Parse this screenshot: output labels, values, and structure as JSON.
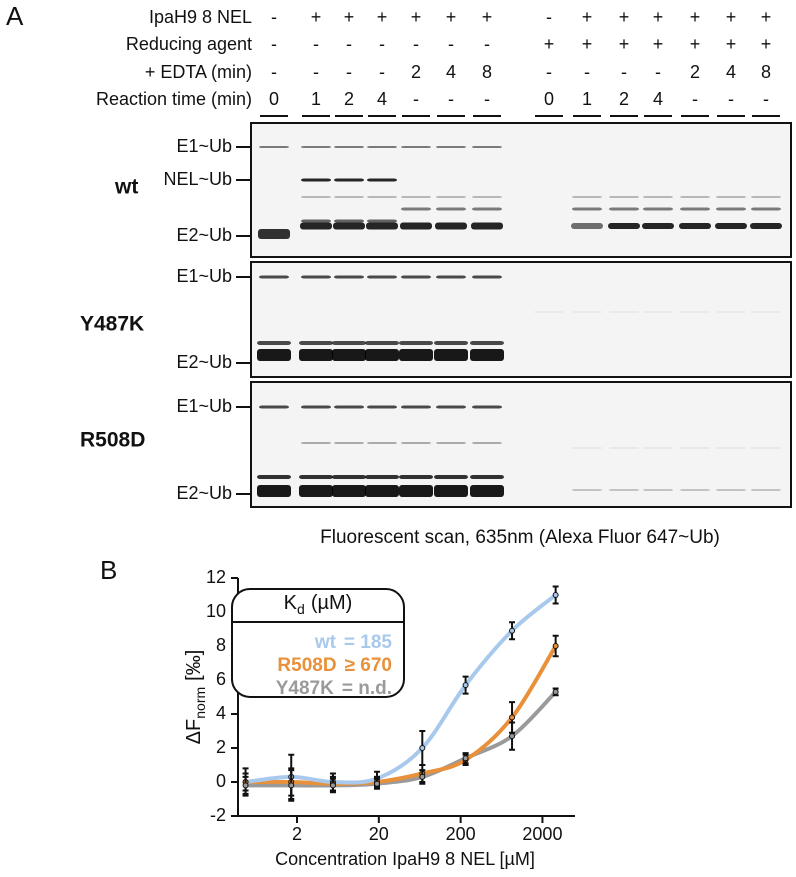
{
  "panel_a": {
    "label": "A",
    "conditions": [
      {
        "name": "IpaH9 8 NEL",
        "cells": [
          "-",
          "+",
          "+",
          "+",
          "+",
          "+",
          "+",
          "-",
          "+",
          "+",
          "+",
          "+",
          "+",
          "+"
        ]
      },
      {
        "name": "Reducing agent",
        "cells": [
          "-",
          "-",
          "-",
          "-",
          "-",
          "-",
          "-",
          "+",
          "+",
          "+",
          "+",
          "+",
          "+",
          "+"
        ]
      },
      {
        "name": "+ EDTA (min)",
        "cells": [
          "-",
          "-",
          "-",
          "-",
          "2",
          "4",
          "8",
          "-",
          "-",
          "-",
          "-",
          "2",
          "4",
          "8"
        ]
      },
      {
        "name": "Reaction time (min)",
        "cells": [
          "0",
          "1",
          "2",
          "4",
          "-",
          "-",
          "-",
          "0",
          "1",
          "2",
          "4",
          "-",
          "-",
          "-"
        ]
      }
    ],
    "gels": [
      {
        "name": "wt",
        "bands": [
          "E1~Ub",
          "NEL~Ub",
          "E2~Ub"
        ]
      },
      {
        "name": "Y487K",
        "bands": [
          "E1~Ub",
          "E2~Ub"
        ]
      },
      {
        "name": "R508D",
        "bands": [
          "E1~Ub",
          "E2~Ub"
        ]
      }
    ],
    "caption": "Fluorescent scan, 635nm (Alexa Fluor 647~Ub)"
  },
  "chart_data": {
    "type": "line",
    "panel_label": "B",
    "x_label": "Concentration IpaH9 8 NEL [µM]",
    "y_label": {
      "main": "ΔF",
      "sub": "norm",
      "unit": "[‰]"
    },
    "legend_title": {
      "main": "K",
      "sub": "d",
      "unit": "(µM)"
    },
    "x": [
      0.47,
      1.7,
      5.5,
      19,
      68,
      230,
      850,
      2900
    ],
    "series": [
      {
        "name": "wt",
        "kd_label": "= 185",
        "color": "#a9c9ec",
        "values": [
          0,
          0.3,
          0,
          0.2,
          2.0,
          5.7,
          8.9,
          11.0
        ],
        "errors": [
          0.8,
          1.3,
          0.5,
          0.4,
          1.0,
          0.5,
          0.5,
          0.5
        ]
      },
      {
        "name": "R508D",
        "kd_label": "≥ 670",
        "color": "#e8913a",
        "values": [
          0,
          0,
          -0.1,
          0,
          0.5,
          1.3,
          3.8,
          8.0
        ],
        "errors": [
          0.5,
          0.8,
          0.4,
          0.3,
          0.5,
          0.3,
          0.9,
          0.6
        ]
      },
      {
        "name": "Y487K",
        "kd_label": "= n.d.",
        "color": "#9a9a9a",
        "values": [
          -0.2,
          -0.2,
          -0.2,
          -0.1,
          0.3,
          1.4,
          2.7,
          5.3
        ],
        "errors": [
          0.5,
          0.9,
          0.4,
          0.3,
          0.4,
          0.3,
          0.8,
          0.2
        ]
      }
    ],
    "xlim": [
      0.38,
      5000
    ],
    "xticks": [
      2,
      20,
      200,
      2000
    ],
    "xscale": "log",
    "ylim": [
      -2,
      12
    ],
    "yticks": [
      -2,
      0,
      2,
      4,
      6,
      8,
      10,
      12
    ]
  }
}
